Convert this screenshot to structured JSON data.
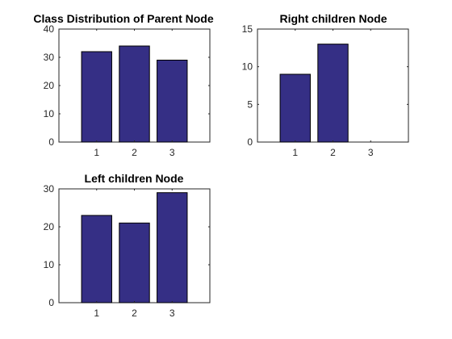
{
  "bar_color": "#352F85",
  "chart_data": [
    {
      "type": "bar",
      "title": "Class Distribution of Parent Node",
      "categories": [
        "1",
        "2",
        "3"
      ],
      "values": [
        32,
        34,
        29
      ],
      "xlabel": "",
      "ylabel": "",
      "ylim": [
        0,
        40
      ],
      "yticks": [
        "0",
        "10",
        "20",
        "30",
        "40"
      ],
      "grid": false
    },
    {
      "type": "bar",
      "title": "Right children Node",
      "categories": [
        "1",
        "2",
        "3"
      ],
      "values": [
        9,
        13,
        0
      ],
      "xlabel": "",
      "ylabel": "",
      "ylim": [
        0,
        15
      ],
      "yticks": [
        "0",
        "5",
        "10",
        "15"
      ],
      "grid": false
    },
    {
      "type": "bar",
      "title": "Left children Node",
      "categories": [
        "1",
        "2",
        "3"
      ],
      "values": [
        23,
        21,
        29
      ],
      "xlabel": "",
      "ylabel": "",
      "ylim": [
        0,
        30
      ],
      "yticks": [
        "0",
        "10",
        "20",
        "30"
      ],
      "grid": false
    }
  ]
}
